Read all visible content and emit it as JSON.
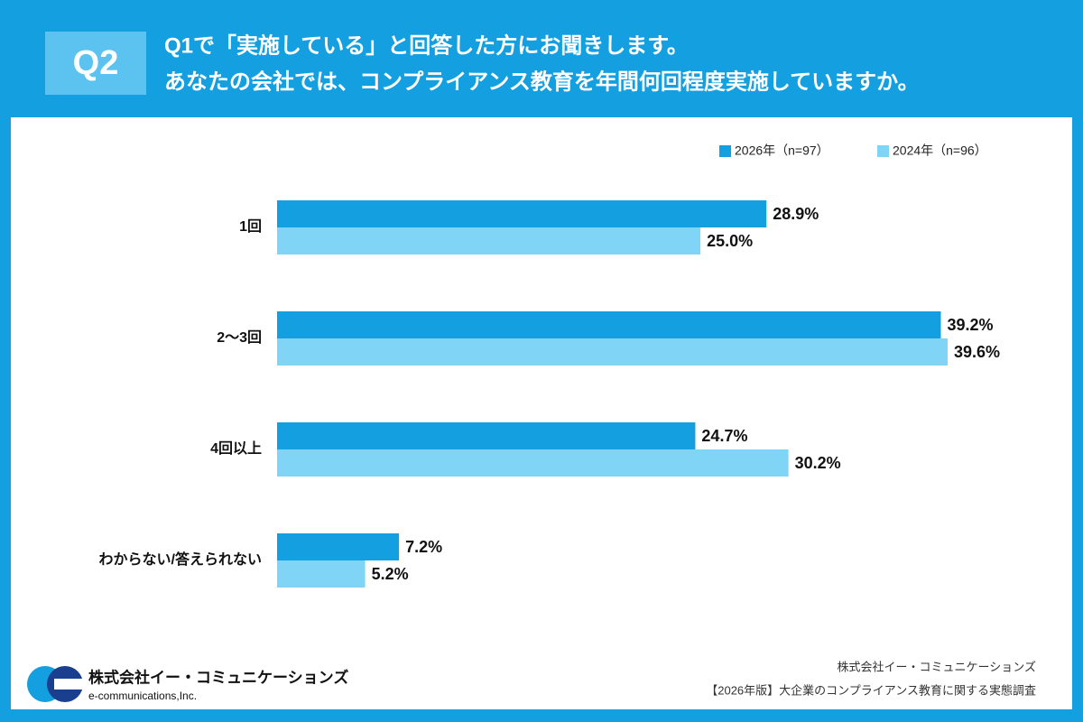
{
  "chart_data": {
    "type": "bar",
    "orientation": "horizontal",
    "question_number": "Q2",
    "title": "Q1で「実施している」と回答した方にお聞きします。",
    "subtitle": "あなたの会社では、コンプライアンス教育を年間何回程度実施していますか。",
    "categories": [
      "1回",
      "2〜3回",
      "4回以上",
      "わからない/答えられない"
    ],
    "series": [
      {
        "name": "2026年（n=97）",
        "color": "#14a0e0",
        "values": [
          28.9,
          39.2,
          24.7,
          7.2
        ],
        "value_labels": [
          "28.9%",
          "39.2%",
          "24.7%",
          "7.2%"
        ]
      },
      {
        "name": "2024年（n=96）",
        "color": "#80d4f6",
        "values": [
          25.0,
          39.6,
          30.2,
          5.2
        ],
        "value_labels": [
          "25.0%",
          "39.6%",
          "30.2%",
          "5.2%"
        ]
      }
    ],
    "legend": "top-right",
    "logo_name": "株式会社イー・コミュニケーションズ",
    "logo_sub": "e-communications,Inc.",
    "source_company": "株式会社イー・コミュニケーションズ",
    "source_survey": "【2026年版】大企業のコンプライアンス教育に関する実態調査"
  }
}
